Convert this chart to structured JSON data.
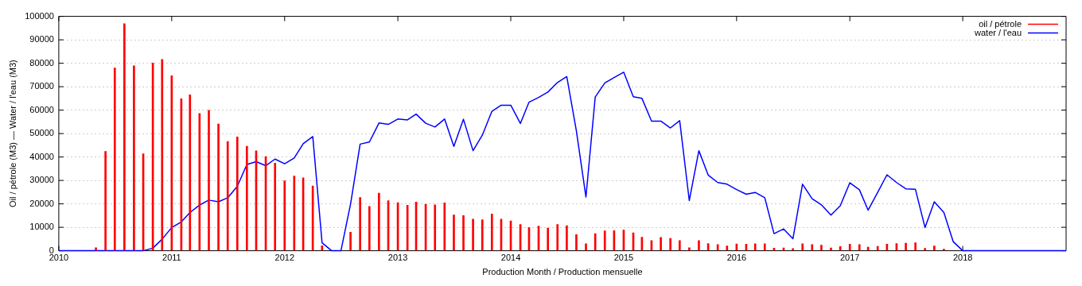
{
  "chart_data": {
    "type": "bar",
    "xlabel": "Production Month / Production mensuelle",
    "ylabel": "Oil / pétrole (M3) — Water / l'eau (M3)",
    "x": [
      "2010-01",
      "2010-02",
      "2010-03",
      "2010-04",
      "2010-05",
      "2010-06",
      "2010-07",
      "2010-08",
      "2010-09",
      "2010-10",
      "2010-11",
      "2010-12",
      "2011-01",
      "2011-02",
      "2011-03",
      "2011-04",
      "2011-05",
      "2011-06",
      "2011-07",
      "2011-08",
      "2011-09",
      "2011-10",
      "2011-11",
      "2011-12",
      "2012-01",
      "2012-02",
      "2012-03",
      "2012-04",
      "2012-05",
      "2012-06",
      "2012-07",
      "2012-08",
      "2012-09",
      "2012-10",
      "2012-11",
      "2012-12",
      "2013-01",
      "2013-02",
      "2013-03",
      "2013-04",
      "2013-05",
      "2013-06",
      "2013-07",
      "2013-08",
      "2013-09",
      "2013-10",
      "2013-11",
      "2013-12",
      "2014-01",
      "2014-02",
      "2014-03",
      "2014-04",
      "2014-05",
      "2014-06",
      "2014-07",
      "2014-08",
      "2014-09",
      "2014-10",
      "2014-11",
      "2014-12",
      "2015-01",
      "2015-02",
      "2015-03",
      "2015-04",
      "2015-05",
      "2015-06",
      "2015-07",
      "2015-08",
      "2015-09",
      "2015-10",
      "2015-11",
      "2015-12",
      "2016-01",
      "2016-02",
      "2016-03",
      "2016-04",
      "2016-05",
      "2016-06",
      "2016-07",
      "2016-08",
      "2016-09",
      "2016-10",
      "2016-11",
      "2016-12",
      "2017-01",
      "2017-02",
      "2017-03",
      "2017-04",
      "2017-05",
      "2017-06",
      "2017-07",
      "2017-08",
      "2017-09",
      "2017-10",
      "2017-11",
      "2017-12",
      "2018-01",
      "2018-02",
      "2018-03",
      "2018-04",
      "2018-05",
      "2018-06",
      "2018-07",
      "2018-08",
      "2018-09",
      "2018-10",
      "2018-11",
      "2018-12"
    ],
    "series": [
      {
        "name": "oil / pétrole",
        "color": "#ff0000",
        "values": [
          null,
          null,
          null,
          null,
          1300,
          42400,
          78000,
          96900,
          78900,
          41400,
          80100,
          81600,
          74700,
          64800,
          66500,
          58600,
          59900,
          54100,
          46600,
          48600,
          44600,
          42600,
          40200,
          37400,
          29800,
          31900,
          31100,
          27600,
          2100,
          null,
          null,
          7900,
          22700,
          18900,
          24600,
          21400,
          20500,
          19400,
          20800,
          19800,
          19600,
          20400,
          15300,
          15000,
          13500,
          13200,
          15700,
          13500,
          12700,
          11200,
          9900,
          10500,
          9700,
          11200,
          10700,
          6900,
          3000,
          7300,
          8500,
          8600,
          8800,
          7600,
          5800,
          4300,
          5700,
          5300,
          4300,
          1300,
          4300,
          3100,
          2600,
          2000,
          2900,
          2800,
          3000,
          3000,
          1100,
          1200,
          900,
          3000,
          2600,
          2400,
          1200,
          1800,
          2800,
          2600,
          1500,
          1900,
          2800,
          3100,
          3200,
          3400,
          1000,
          2000,
          700,
          null,
          null,
          null,
          null,
          null,
          null,
          null,
          null,
          null,
          null,
          null,
          null,
          null
        ]
      },
      {
        "name": "water / l'eau",
        "type": "line",
        "color": "#0000ff",
        "values": [
          0,
          0,
          0,
          0,
          0,
          0,
          0,
          0,
          0,
          0,
          1100,
          4900,
          9900,
          12300,
          16300,
          19500,
          21600,
          20900,
          22600,
          27500,
          36800,
          38000,
          36300,
          39100,
          37100,
          39600,
          45700,
          48700,
          3400,
          0,
          0,
          19800,
          45500,
          46400,
          54500,
          53900,
          56200,
          55800,
          58300,
          54400,
          52800,
          56200,
          44500,
          56100,
          42700,
          49300,
          59500,
          62100,
          62100,
          54300,
          63400,
          65400,
          67700,
          71800,
          74300,
          51200,
          22900,
          65600,
          71600,
          73900,
          76200,
          65700,
          65000,
          55300,
          55300,
          52400,
          55500,
          21400,
          42700,
          32300,
          29100,
          28400,
          26100,
          24100,
          24900,
          22600,
          7300,
          9300,
          5100,
          28400,
          22200,
          19600,
          15200,
          19200,
          29000,
          26000,
          17300,
          24900,
          32400,
          29100,
          26400,
          26200,
          9900,
          20900,
          16300,
          3900,
          0,
          0,
          0,
          0,
          0,
          0,
          0,
          0,
          0,
          0,
          0,
          0
        ]
      }
    ],
    "xlim": [
      "2010-01",
      "2018-12"
    ],
    "xticks": [
      "2010",
      "2011",
      "2012",
      "2013",
      "2014",
      "2015",
      "2016",
      "2017",
      "2018"
    ],
    "ylim": [
      0,
      100000
    ],
    "yticks": [
      0,
      10000,
      20000,
      30000,
      40000,
      50000,
      60000,
      70000,
      80000,
      90000,
      100000
    ],
    "grid": "y",
    "legend": "top right",
    "marker": "none",
    "line_style": "solid"
  }
}
